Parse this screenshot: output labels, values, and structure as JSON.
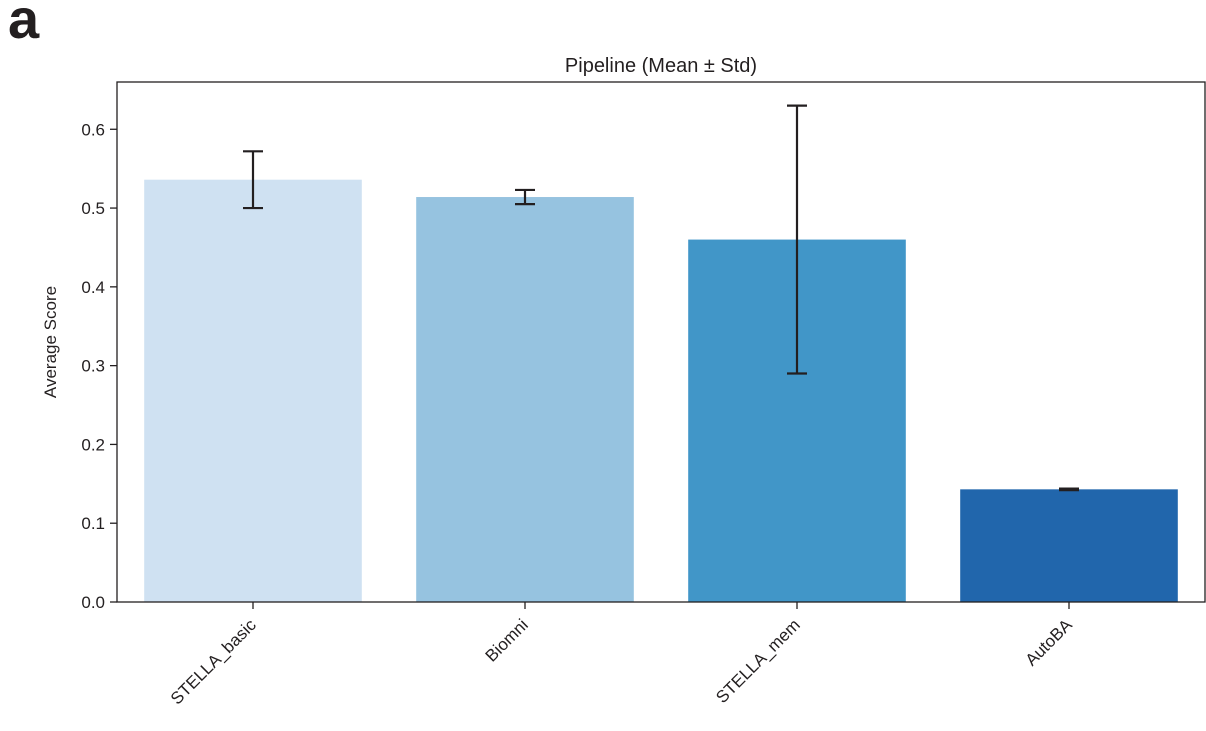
{
  "panel_label": "a",
  "chart_data": {
    "type": "bar",
    "title": "Pipeline (Mean ± Std)",
    "xlabel": "",
    "ylabel": "Average Score",
    "categories": [
      "STELLA_basic",
      "Biomni",
      "STELLA_mem",
      "AutoBA"
    ],
    "values": [
      0.536,
      0.514,
      0.46,
      0.143
    ],
    "errors": [
      0.036,
      0.009,
      0.17,
      0.001
    ],
    "colors": [
      "#cfe1f2",
      "#96c3e0",
      "#4196c8",
      "#2166ac"
    ],
    "ylim": [
      0,
      0.66
    ],
    "yticks": [
      0.0,
      0.1,
      0.2,
      0.3,
      0.4,
      0.5,
      0.6
    ],
    "ytick_labels": [
      "0.0",
      "0.1",
      "0.2",
      "0.3",
      "0.4",
      "0.5",
      "0.6"
    ],
    "grid": false,
    "legend": "none"
  }
}
